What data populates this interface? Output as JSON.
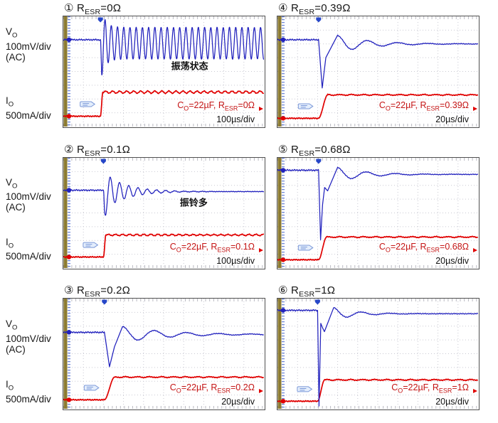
{
  "colors": {
    "vo_trace": "#2121bd",
    "io_trace": "#e00000",
    "grid": "#c9c9d2",
    "edge_ticks": "#b9b9c2",
    "left_tick_column": "#6b83d6",
    "olive_bar": "#8c7b31",
    "panel_border": "#505050",
    "badge_fill": "#e4eefc",
    "badge_stroke": "#7b98d8",
    "trigger_marker": "#2747c8",
    "cond_text": "#c41414",
    "time_text": "#111111"
  },
  "labels": {
    "vo": {
      "parts": [
        {
          "text": "V"
        },
        {
          "text": "O",
          "sub": true
        }
      ],
      "lines": [
        "100mV/div",
        "(AC)"
      ]
    },
    "io": {
      "parts": [
        {
          "text": "I"
        },
        {
          "text": "O",
          "sub": true
        }
      ],
      "lines": [
        "500mA/div"
      ]
    }
  },
  "chart_data": [
    {
      "type": "line",
      "number": "①",
      "resr_ohm": 0,
      "title_parts": [
        {
          "text": "① R"
        },
        {
          "text": "ESR",
          "sub": true
        },
        {
          "text": "=0Ω"
        }
      ],
      "annotation": "振荡状态",
      "annotation_pos": {
        "x_div": 6.3,
        "y_div": 3.55
      },
      "cond_parts": [
        {
          "text": "C"
        },
        {
          "text": "O",
          "sub": true
        },
        {
          "text": "=22µF, R"
        },
        {
          "text": "ESR",
          "sub": true
        },
        {
          "text": "=0Ω"
        }
      ],
      "timebase": "100µs/div",
      "column": 0,
      "row": 0,
      "divisions": {
        "x": 10,
        "y": 8
      },
      "vo": {
        "mode": "sustain",
        "base": 1.7,
        "xe": 1.85,
        "center": 1.95,
        "amp": 1.15,
        "period": 0.31,
        "boost": 1.4,
        "boost_tau": 0.22
      },
      "io": {
        "low": 7.25,
        "high": 5.5,
        "xs": 1.85,
        "rise": 0.12,
        "ripple_amp": 0.08,
        "ripple_period": 0.35
      }
    },
    {
      "type": "line",
      "number": "②",
      "resr_ohm": 0.1,
      "title_parts": [
        {
          "text": "② R"
        },
        {
          "text": "ESR",
          "sub": true
        },
        {
          "text": "=0.1Ω"
        }
      ],
      "annotation": "振铃多",
      "annotation_pos": {
        "x_div": 6.5,
        "y_div": 3.2
      },
      "cond_parts": [
        {
          "text": "C"
        },
        {
          "text": "O",
          "sub": true
        },
        {
          "text": "=22µF, R"
        },
        {
          "text": "ESR",
          "sub": true
        },
        {
          "text": "=0.1Ω"
        }
      ],
      "timebase": "100µs/div",
      "column": 0,
      "row": 1,
      "divisions": {
        "x": 10,
        "y": 8
      },
      "vo": {
        "mode": "ring",
        "base": 2.35,
        "xe": 2.0,
        "settle": 2.45,
        "amp": 1.35,
        "period": 0.46,
        "tau": 1.1,
        "boost": 1.0,
        "boost_tau": 0.12
      },
      "io": {
        "low": 7.2,
        "high": 5.6,
        "xs": 2.0,
        "rise": 0.12,
        "ripple_amp": 0.05,
        "ripple_period": 0.35
      }
    },
    {
      "type": "line",
      "number": "③",
      "resr_ohm": 0.2,
      "title_parts": [
        {
          "text": "③ R"
        },
        {
          "text": "ESR",
          "sub": true
        },
        {
          "text": "=0.2Ω"
        }
      ],
      "annotation": null,
      "annotation_pos": null,
      "cond_parts": [
        {
          "text": "C"
        },
        {
          "text": "O",
          "sub": true
        },
        {
          "text": "=22µF, R"
        },
        {
          "text": "ESR",
          "sub": true
        },
        {
          "text": "=0.2Ω"
        }
      ],
      "timebase": "20µs/div",
      "column": 0,
      "row": 2,
      "divisions": {
        "x": 10,
        "y": 8
      },
      "vo": {
        "mode": "step",
        "base": 2.45,
        "xe": 2.05,
        "dip": [
          0.25,
          4.95
        ],
        "mid": [
          [
            0.5,
            3.5
          ]
        ],
        "ring_start": 0.9,
        "center": 2.6,
        "amp": 0.58,
        "period": 1.6,
        "tau": 2.2
      },
      "io": {
        "low": 7.35,
        "high": 5.7,
        "xs": 2.05,
        "rise": 0.5,
        "ripple_amp": 0.03,
        "ripple_period": 0.6
      }
    },
    {
      "type": "line",
      "number": "④",
      "resr_ohm": 0.39,
      "title_parts": [
        {
          "text": "④ R"
        },
        {
          "text": "ESR",
          "sub": true
        },
        {
          "text": "=0.39Ω"
        }
      ],
      "annotation": null,
      "annotation_pos": null,
      "cond_parts": [
        {
          "text": "C"
        },
        {
          "text": "O",
          "sub": true
        },
        {
          "text": "=22µF, R"
        },
        {
          "text": "ESR",
          "sub": true
        },
        {
          "text": "=0.39Ω"
        }
      ],
      "timebase": "20µs/div",
      "column": 1,
      "row": 0,
      "divisions": {
        "x": 10,
        "y": 8
      },
      "vo": {
        "mode": "step",
        "base": 1.7,
        "xe": 2.05,
        "dip": [
          0.18,
          5.2
        ],
        "mid": [
          [
            0.36,
            3.0
          ]
        ],
        "ring_start": 0.95,
        "center": 2.0,
        "amp": 0.62,
        "period": 1.5,
        "tau": 1.6
      },
      "io": {
        "low": 7.4,
        "high": 5.7,
        "xs": 2.05,
        "rise": 0.45,
        "ripple_amp": 0.03,
        "ripple_period": 0.6
      }
    },
    {
      "type": "line",
      "number": "⑤",
      "resr_ohm": 0.68,
      "title_parts": [
        {
          "text": "⑤ R"
        },
        {
          "text": "ESR",
          "sub": true
        },
        {
          "text": "=0.68Ω"
        }
      ],
      "annotation": null,
      "annotation_pos": null,
      "cond_parts": [
        {
          "text": "C"
        },
        {
          "text": "O",
          "sub": true
        },
        {
          "text": "=22µF, R"
        },
        {
          "text": "ESR",
          "sub": true
        },
        {
          "text": "=0.68Ω"
        }
      ],
      "timebase": "20µs/div",
      "column": 1,
      "row": 1,
      "divisions": {
        "x": 10,
        "y": 8
      },
      "vo": {
        "mode": "step",
        "base": 0.9,
        "xe": 2.05,
        "dip": [
          0.1,
          5.95
        ],
        "mid": [
          [
            0.2,
            3.4
          ],
          [
            0.3,
            2.15
          ],
          [
            0.45,
            2.4
          ]
        ],
        "ring_start": 0.95,
        "center": 1.2,
        "amp": 0.5,
        "period": 1.45,
        "tau": 1.4
      },
      "io": {
        "low": 7.4,
        "high": 5.75,
        "xs": 2.05,
        "rise": 0.4,
        "ripple_amp": 0.03,
        "ripple_period": 0.6
      }
    },
    {
      "type": "line",
      "number": "⑥",
      "resr_ohm": 1,
      "title_parts": [
        {
          "text": "⑥ R"
        },
        {
          "text": "ESR",
          "sub": true
        },
        {
          "text": "=1Ω"
        }
      ],
      "annotation": null,
      "annotation_pos": null,
      "cond_parts": [
        {
          "text": "C"
        },
        {
          "text": "O",
          "sub": true
        },
        {
          "text": "=22µF, R"
        },
        {
          "text": "ESR",
          "sub": true
        },
        {
          "text": "=1Ω"
        }
      ],
      "timebase": "20µs/div",
      "column": 1,
      "row": 2,
      "divisions": {
        "x": 10,
        "y": 8
      },
      "vo": {
        "mode": "step",
        "base": 0.85,
        "xe": 2.0,
        "dip": [
          0.07,
          7.8
        ],
        "mid": [
          [
            0.16,
            1.8
          ],
          [
            0.24,
            2.1
          ],
          [
            0.34,
            2.4
          ]
        ],
        "ring_start": 0.8,
        "center": 1.1,
        "amp": 0.45,
        "period": 1.4,
        "tau": 1.1
      },
      "io": {
        "low": 7.45,
        "high": 5.9,
        "xs": 2.0,
        "rise": 0.35,
        "ripple_amp": 0.03,
        "ripple_period": 0.6
      }
    }
  ]
}
